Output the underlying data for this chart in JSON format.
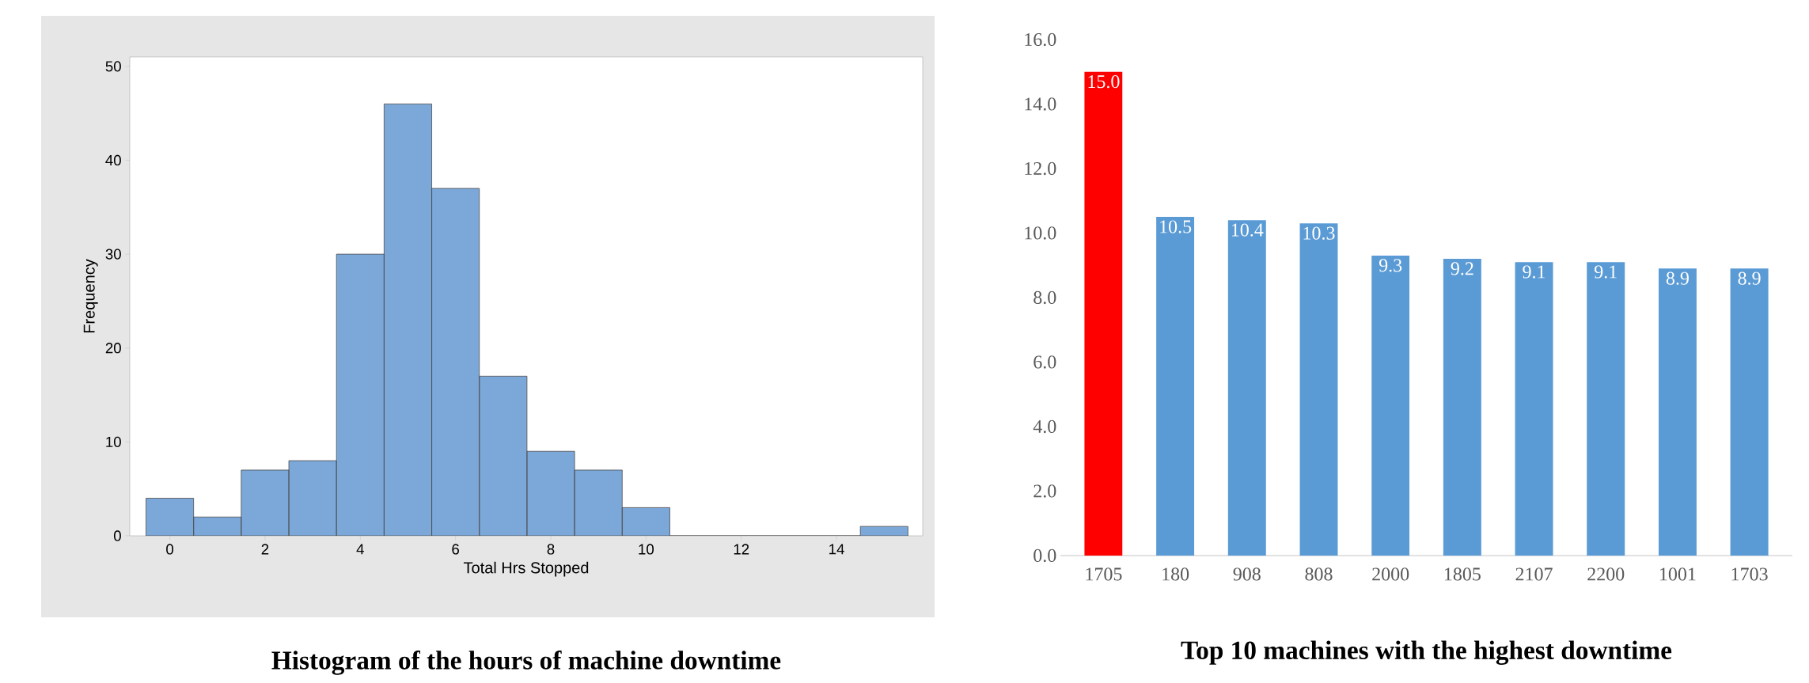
{
  "chart_data": [
    {
      "type": "histogram",
      "title": "Histogram of the hours of machine downtime",
      "xlabel": "Total Hrs Stopped",
      "ylabel": "Frequency",
      "bins": [
        -0.5,
        0.5,
        1.5,
        2.5,
        3.5,
        4.5,
        5.5,
        6.5,
        7.5,
        8.5,
        9.5,
        10.5,
        11.5,
        12.5,
        13.5,
        14.5,
        15.5
      ],
      "values": [
        4,
        2,
        7,
        8,
        30,
        46,
        37,
        17,
        9,
        7,
        3,
        0,
        0,
        0,
        0,
        1
      ],
      "color": "#7ba7d9",
      "xlim": [
        -0.84,
        15.81
      ],
      "ylim": [
        0,
        51
      ],
      "xticks": [
        0,
        2,
        4,
        6,
        8,
        10,
        12,
        14
      ],
      "yticks": [
        0,
        10,
        20,
        30,
        40,
        50
      ],
      "grid": false
    },
    {
      "type": "bar",
      "title": "Top 10 machines with the highest downtime",
      "categories": [
        "1705",
        "180",
        "908",
        "808",
        "2000",
        "1805",
        "2107",
        "2200",
        "1001",
        "1703"
      ],
      "values": [
        15.0,
        10.5,
        10.4,
        10.3,
        9.3,
        9.2,
        9.1,
        9.1,
        8.9,
        8.9
      ],
      "colors": [
        "#ff0000",
        "#5b9bd5",
        "#5b9bd5",
        "#5b9bd5",
        "#5b9bd5",
        "#5b9bd5",
        "#5b9bd5",
        "#5b9bd5",
        "#5b9bd5",
        "#5b9bd5"
      ],
      "ylim": [
        0,
        16
      ],
      "yticks": [
        {
          "value": 0,
          "label": "0.0"
        },
        {
          "value": 2,
          "label": "2.0"
        },
        {
          "value": 4,
          "label": "4.0"
        },
        {
          "value": 6,
          "label": "6.0"
        },
        {
          "value": 8,
          "label": "8.0"
        },
        {
          "value": 10,
          "label": "10.0"
        },
        {
          "value": 12,
          "label": "12.0"
        },
        {
          "value": 14,
          "label": "14.0"
        },
        {
          "value": 16,
          "label": "16.0"
        }
      ],
      "value_labels": [
        "15.0",
        "10.5",
        "10.4",
        "10.3",
        "9.3",
        "9.2",
        "9.1",
        "9.1",
        "8.9",
        "8.9"
      ],
      "grid": false
    }
  ]
}
